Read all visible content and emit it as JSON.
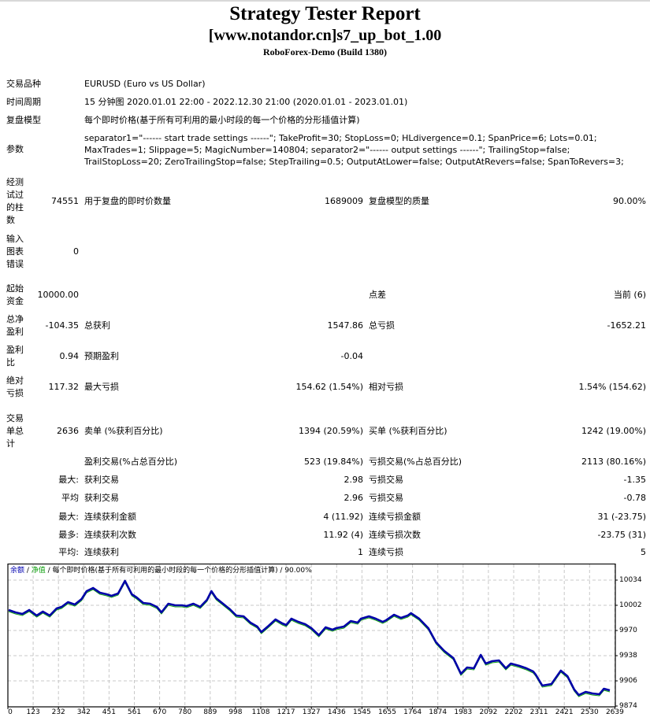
{
  "header": {
    "title": "Strategy Tester Report",
    "expert": "[www.notandor.cn]s7_up_bot_1.00",
    "server": "RoboForex-Demo (Build 1380)"
  },
  "info": {
    "symbol_label": "交易品种",
    "symbol_value": "EURUSD (Euro vs US Dollar)",
    "period_label": "时间周期",
    "period_value": "15 分钟图 2020.01.01 22:00 - 2022.12.30 21:00 (2020.01.01 - 2023.01.01)",
    "model_label": "复盘模型",
    "model_value": "每个即时价格(基于所有可利用的最小时段的每一个价格的分形插值计算)",
    "params_label": "参数",
    "params_value": "separator1=\"------ start trade settings ------\"; TakeProfit=30; StopLoss=0; HLdivergence=0.1; SpanPrice=6; Lots=0.01; MaxTrades=1; Slippage=5; MagicNumber=140804; separator2=\"------ output settings ------\"; TrailingStop=false; TrailStopLoss=20; ZeroTrailingStop=false; StepTrailing=0.5; OutputAtLower=false; OutputAtRevers=false; SpanToRevers=3;"
  },
  "stats": {
    "bars_label": "经测试过的柱数",
    "bars_value": "74551",
    "ticks_label": "用于复盘的即时价数量",
    "ticks_value": "1689009",
    "quality_label": "复盘模型的质量",
    "quality_value": "90.00%",
    "errors_label": "输入图表错误",
    "errors_value": "0",
    "deposit_label": "起始资金",
    "deposit_value": "10000.00",
    "spread_label": "点差",
    "spread_value": "当前 (6)",
    "net_profit_label": "总净盈利",
    "net_profit_value": "-104.35",
    "gross_profit_label": "总获利",
    "gross_profit_value": "1547.86",
    "gross_loss_label": "总亏损",
    "gross_loss_value": "-1652.21",
    "profit_factor_label": "盈利比",
    "profit_factor_value": "0.94",
    "expected_payoff_label": "预期盈利",
    "expected_payoff_value": "-0.04",
    "abs_dd_label": "绝对亏损",
    "abs_dd_value": "117.32",
    "max_dd_label": "最大亏损",
    "max_dd_value": "154.62 (1.54%)",
    "rel_dd_label": "相对亏损",
    "rel_dd_value": "1.54% (154.62)",
    "total_trades_label": "交易单总计",
    "total_trades_value": "2636",
    "short_label": "卖单 (%获利百分比)",
    "short_value": "1394 (20.59%)",
    "long_label": "买单 (%获利百分比)",
    "long_value": "1242 (19.00%)",
    "profit_trades_label": "盈利交易(%占总百分比)",
    "profit_trades_value": "523 (19.84%)",
    "loss_trades_label": "亏损交易(%占总百分比)",
    "loss_trades_value": "2113 (80.16%)"
  },
  "detail_rows": [
    {
      "prefix": "最大:",
      "l_label": "获利交易",
      "l_value": "2.98",
      "r_label": "亏损交易",
      "r_value": "-1.35"
    },
    {
      "prefix": "平均",
      "l_label": "获利交易",
      "l_value": "2.96",
      "r_label": "亏损交易",
      "r_value": "-0.78"
    },
    {
      "prefix": "最大:",
      "l_label": "连续获利金额",
      "l_value": "4 (11.92)",
      "r_label": "连续亏损金额",
      "r_value": "31 (-23.75)"
    },
    {
      "prefix": "最多:",
      "l_label": "连续获利次数",
      "l_value": "11.92 (4)",
      "r_label": "连续亏损次数",
      "r_value": "-23.75 (31)"
    },
    {
      "prefix": "平均:",
      "l_label": "连续获利",
      "l_value": "1",
      "r_label": "连续亏损",
      "r_value": "5"
    }
  ],
  "chart_legend": {
    "balance": "余额",
    "sep1": " / ",
    "equity": "净值",
    "rest": " / 每个即时价格(基于所有可利用的最小时段的每一个价格的分形插值计算) / 90.00%"
  },
  "colors": {
    "balance_line": "#0000a8",
    "equity_line": "#10a010",
    "grid": "#c8c8c8"
  },
  "chart_data": {
    "type": "line",
    "title": "余额 / 净值 / 每个即时价格(基于所有可利用的最小时段的每一个价格的分形插值计算) / 90.00%",
    "xlabel": "",
    "ylabel": "",
    "x_ticks": [
      "0",
      "123",
      "232",
      "342",
      "451",
      "561",
      "670",
      "780",
      "889",
      "998",
      "1108",
      "1217",
      "1327",
      "1436",
      "1545",
      "1655",
      "1764",
      "1874",
      "1983",
      "2092",
      "2202",
      "2311",
      "2421",
      "2530",
      "2639"
    ],
    "y_ticks": [
      "10034",
      "10002",
      "9970",
      "9938",
      "9906",
      "9874"
    ],
    "ylim": [
      9874,
      10042
    ],
    "xlim": [
      0,
      2636
    ],
    "grid": true,
    "legend_position": "top-left",
    "series": [
      {
        "name": "余额",
        "x": [
          0,
          30,
          60,
          90,
          123,
          150,
          180,
          210,
          232,
          260,
          290,
          320,
          342,
          370,
          400,
          430,
          451,
          480,
          510,
          540,
          561,
          590,
          620,
          650,
          670,
          700,
          730,
          760,
          780,
          810,
          840,
          870,
          889,
          910,
          940,
          970,
          998,
          1030,
          1060,
          1090,
          1108,
          1140,
          1170,
          1200,
          1217,
          1240,
          1270,
          1300,
          1327,
          1360,
          1390,
          1420,
          1436,
          1470,
          1500,
          1530,
          1545,
          1580,
          1610,
          1640,
          1655,
          1690,
          1720,
          1750,
          1764,
          1800,
          1840,
          1874,
          1910,
          1950,
          1983,
          2010,
          2040,
          2070,
          2092,
          2120,
          2150,
          2180,
          2202,
          2240,
          2270,
          2300,
          2311,
          2340,
          2380,
          2421,
          2450,
          2480,
          2500,
          2530,
          2560,
          2590,
          2610,
          2636
        ],
        "values": [
          9996,
          9993,
          9991,
          9996,
          9989,
          9994,
          9989,
          9998,
          10000,
          10006,
          10003,
          10010,
          10020,
          10024,
          10018,
          10016,
          10014,
          10017,
          10033,
          10016,
          10012,
          10005,
          10004,
          10000,
          9993,
          10004,
          10002,
          10002,
          10001,
          10004,
          10000,
          10009,
          10020,
          10011,
          10004,
          9997,
          9989,
          9988,
          9980,
          9975,
          9968,
          9976,
          9984,
          9979,
          9977,
          9985,
          9981,
          9978,
          9973,
          9964,
          9974,
          9971,
          9973,
          9975,
          9982,
          9980,
          9985,
          9988,
          9985,
          9981,
          9983,
          9990,
          9986,
          9989,
          9992,
          9985,
          9973,
          9955,
          9944,
          9935,
          9915,
          9923,
          9922,
          9939,
          9928,
          9931,
          9932,
          9922,
          9928,
          9925,
          9922,
          9918,
          9914,
          9900,
          9902,
          9919,
          9912,
          9895,
          9888,
          9892,
          9890,
          9889,
          9896,
          9894
        ]
      }
    ]
  }
}
